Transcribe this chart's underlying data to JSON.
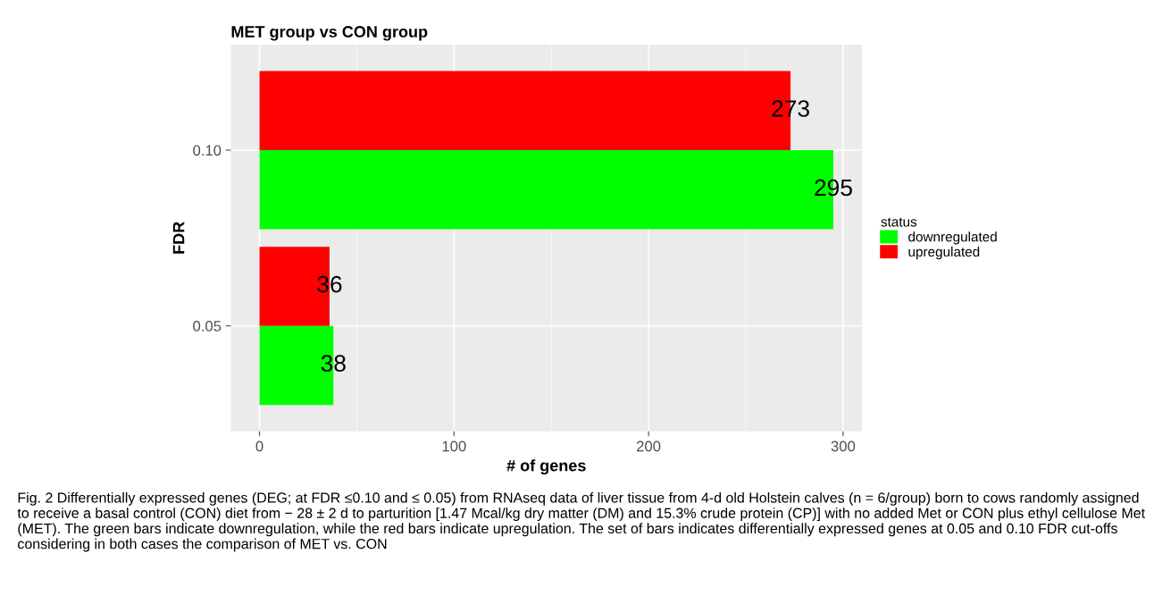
{
  "chart_data": {
    "type": "bar",
    "orientation": "horizontal",
    "title": "MET group vs CON group",
    "xlabel": "# of genes",
    "ylabel": "FDR",
    "legend_title": "status",
    "legend": "right",
    "categories": [
      "0.10",
      "0.05"
    ],
    "series": [
      {
        "name": "downregulated",
        "color": "#00ff00",
        "values": [
          295,
          38
        ]
      },
      {
        "name": "upregulated",
        "color": "#ff0000",
        "values": [
          273,
          36
        ]
      }
    ],
    "xlim": [
      -14.75,
      309.75
    ],
    "xticks": [
      0,
      100,
      200,
      300
    ],
    "grid": true,
    "data_labels": true,
    "annotations": [
      "Fig. 2 Differentially expressed genes (DEG; at FDR ≤0.10 and ≤ 0.05) from RNAseq data of liver tissue from 4-d old Holstein calves (n = 6/group) born to cows randomly assigned to receive a basal control (CON) diet from − 28 ± 2 d to parturition [1.47 Mcal/kg dry matter (DM) and 15.3% crude protein (CP)] with no added Met or CON plus ethyl cellulose Met (MET). The green bars indicate downregulation, while the red bars indicate upregulation. The set of bars indicates differentially expressed genes at 0.05 and 0.10 FDR cut-offs considering in both cases the comparison of MET vs. CON"
    ]
  }
}
